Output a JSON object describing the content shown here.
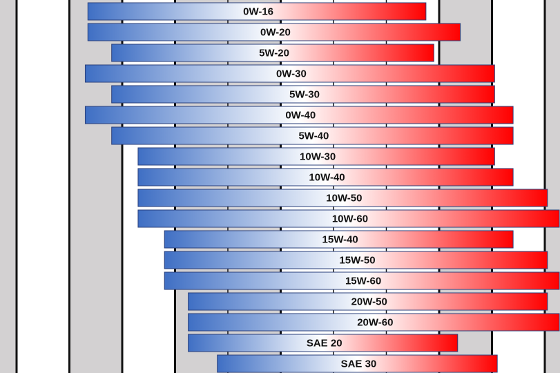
{
  "chart_data": {
    "type": "bar",
    "orientation": "horizontal",
    "title": "",
    "xlabel": "",
    "ylabel": "",
    "grid": true,
    "legend": "none",
    "categories": [
      "0W-16",
      "0W-20",
      "5W-20",
      "0W-30",
      "5W-30",
      "0W-40",
      "5W-40",
      "10W-30",
      "10W-40",
      "10W-50",
      "10W-60",
      "15W-40",
      "15W-50",
      "15W-60",
      "20W-50",
      "20W-60",
      "SAE 20",
      "SAE 30"
    ],
    "ranges": [
      [
        -3.65,
        2.75
      ],
      [
        -3.65,
        3.4
      ],
      [
        -3.2,
        2.9
      ],
      [
        -3.7,
        4.05
      ],
      [
        -3.2,
        4.05
      ],
      [
        -3.7,
        4.4
      ],
      [
        -3.2,
        4.4
      ],
      [
        -2.7,
        4.05
      ],
      [
        -2.7,
        4.4
      ],
      [
        -2.7,
        5.05
      ],
      [
        -2.7,
        5.35
      ],
      [
        -2.2,
        4.4
      ],
      [
        -2.2,
        5.05
      ],
      [
        -2.2,
        5.35
      ],
      [
        -1.75,
        5.05
      ],
      [
        -1.75,
        5.35
      ],
      [
        -1.75,
        3.35
      ],
      [
        -1.2,
        4.1
      ]
    ],
    "colors": {
      "cold": "#3f6fc4",
      "mid": "#ffffff",
      "hot": "#ff0000",
      "band": "#d3d1d2",
      "grid": "#111111"
    }
  }
}
